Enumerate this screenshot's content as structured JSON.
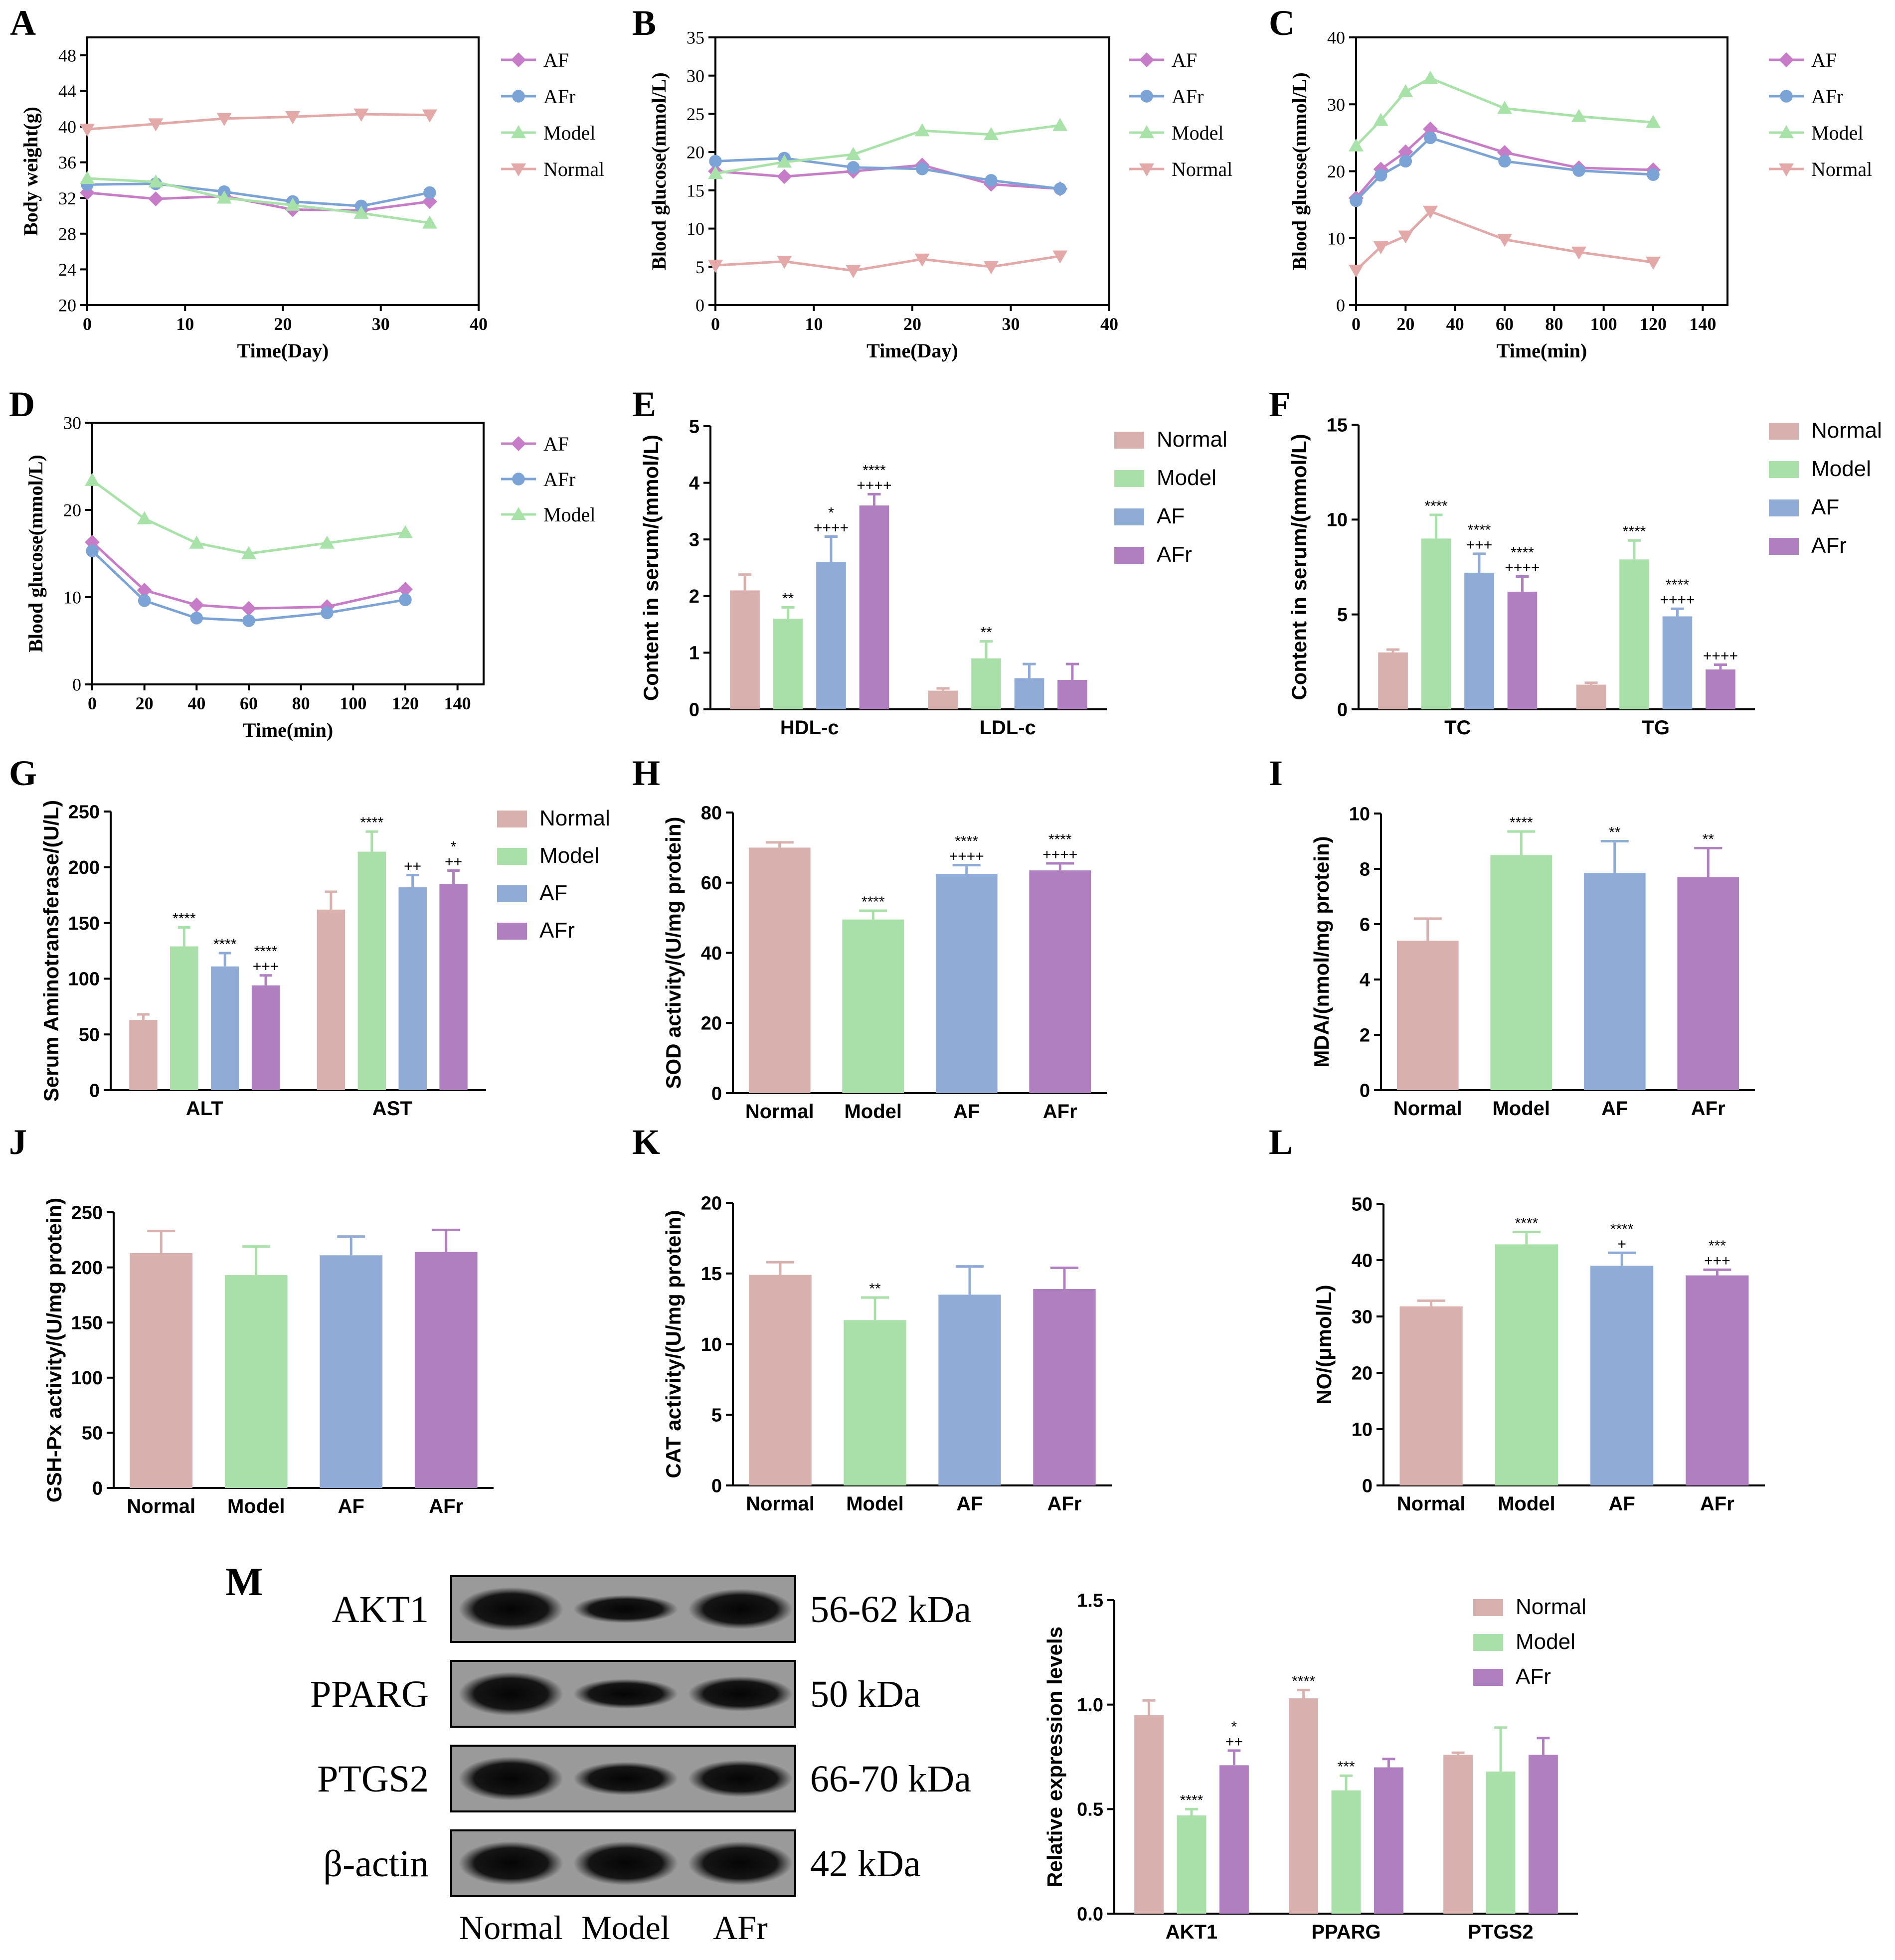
{
  "figure": {
    "background": "#ffffff"
  },
  "colors": {
    "AF": "#c77cc7",
    "AFr": "#7ba3d6",
    "Model": "#a8e2a8",
    "Normal": "#e3a8a8",
    "bar_Normal": "#d8b0ae",
    "bar_Model": "#a9dfa9",
    "bar_AF": "#8fabd6",
    "bar_AFr": "#b07fc0",
    "axis": "#000000"
  },
  "chart_data": [
    {
      "id": "A",
      "panel_label": "A",
      "type": "line",
      "xlabel": "Time(Day)",
      "ylabel": "Body weight(g)",
      "xlim": [
        0,
        40
      ],
      "ylim": [
        20,
        50
      ],
      "xticks": [
        0,
        10,
        20,
        30,
        40
      ],
      "yticks": [
        20,
        24,
        28,
        32,
        36,
        40,
        44,
        48
      ],
      "legend": [
        "AF",
        "AFr",
        "Model",
        "Normal"
      ],
      "legend_position": "right",
      "series": [
        {
          "name": "AF",
          "x": [
            0,
            7,
            14,
            21,
            28,
            35
          ],
          "y": [
            32.6,
            31.9,
            32.2,
            30.7,
            30.6,
            31.6
          ]
        },
        {
          "name": "AFr",
          "x": [
            0,
            7,
            14,
            21,
            28,
            35
          ],
          "y": [
            33.5,
            33.6,
            32.7,
            31.6,
            31.1,
            32.6
          ]
        },
        {
          "name": "Model",
          "x": [
            0,
            7,
            14,
            21,
            28,
            35
          ],
          "y": [
            34.2,
            33.8,
            32.0,
            31.2,
            30.3,
            29.2
          ]
        },
        {
          "name": "Normal",
          "x": [
            0,
            7,
            14,
            21,
            28,
            35
          ],
          "y": [
            39.7,
            40.3,
            40.9,
            41.1,
            41.4,
            41.3
          ]
        }
      ]
    },
    {
      "id": "B",
      "panel_label": "B",
      "type": "line",
      "xlabel": "Time(Day)",
      "ylabel": "Blood glucose(mmol/L)",
      "xlim": [
        0,
        40
      ],
      "ylim": [
        0,
        35
      ],
      "xticks": [
        0,
        10,
        20,
        30,
        40
      ],
      "yticks": [
        0,
        5,
        10,
        15,
        20,
        25,
        30,
        35
      ],
      "legend": [
        "AF",
        "AFr",
        "Model",
        "Normal"
      ],
      "legend_position": "right",
      "series": [
        {
          "name": "AF",
          "x": [
            0,
            7,
            14,
            21,
            28,
            35
          ],
          "y": [
            17.5,
            16.8,
            17.5,
            18.3,
            15.8,
            15.2
          ]
        },
        {
          "name": "AFr",
          "x": [
            0,
            7,
            14,
            21,
            28,
            35
          ],
          "y": [
            18.8,
            19.2,
            18.0,
            17.8,
            16.3,
            15.2
          ]
        },
        {
          "name": "Model",
          "x": [
            0,
            7,
            14,
            21,
            28,
            35
          ],
          "y": [
            17.2,
            18.7,
            19.7,
            22.8,
            22.3,
            23.5
          ]
        },
        {
          "name": "Normal",
          "x": [
            0,
            7,
            14,
            21,
            28,
            35
          ],
          "y": [
            5.2,
            5.7,
            4.5,
            6.0,
            5.0,
            6.4
          ]
        }
      ]
    },
    {
      "id": "C",
      "panel_label": "C",
      "type": "line",
      "xlabel": "Time(min)",
      "ylabel": "Blood glucose(mmol/L)",
      "xlim": [
        0,
        150
      ],
      "ylim": [
        0,
        40
      ],
      "xticks": [
        0,
        20,
        40,
        60,
        80,
        100,
        120,
        140
      ],
      "yticks": [
        0,
        10,
        20,
        30,
        40
      ],
      "legend": [
        "AF",
        "AFr",
        "Model",
        "Normal"
      ],
      "legend_position": "right",
      "series": [
        {
          "name": "AF",
          "x": [
            0,
            10,
            20,
            30,
            60,
            90,
            120
          ],
          "y": [
            16.0,
            20.3,
            22.9,
            26.3,
            22.8,
            20.5,
            20.2
          ]
        },
        {
          "name": "AFr",
          "x": [
            0,
            10,
            20,
            30,
            60,
            90,
            120
          ],
          "y": [
            15.6,
            19.4,
            21.5,
            25.0,
            21.5,
            20.1,
            19.5
          ]
        },
        {
          "name": "Model",
          "x": [
            0,
            10,
            20,
            30,
            60,
            90,
            120
          ],
          "y": [
            23.8,
            27.6,
            31.9,
            33.9,
            29.4,
            28.2,
            27.3
          ]
        },
        {
          "name": "Normal",
          "x": [
            0,
            10,
            20,
            30,
            60,
            90,
            120
          ],
          "y": [
            5.2,
            8.7,
            10.3,
            14.0,
            9.8,
            7.9,
            6.4
          ]
        }
      ]
    },
    {
      "id": "D",
      "panel_label": "D",
      "type": "line",
      "xlabel": "Time(min)",
      "ylabel": "Blood glucose(mmol/L)",
      "xlim": [
        0,
        150
      ],
      "ylim": [
        0,
        30
      ],
      "xticks": [
        0,
        20,
        40,
        60,
        80,
        100,
        120,
        140
      ],
      "yticks": [
        0,
        10,
        20,
        30
      ],
      "legend": [
        "AF",
        "AFr",
        "Model"
      ],
      "legend_position": "right",
      "series": [
        {
          "name": "AF",
          "x": [
            0,
            20,
            40,
            60,
            90,
            120
          ],
          "y": [
            16.3,
            10.8,
            9.1,
            8.7,
            8.9,
            10.9
          ]
        },
        {
          "name": "AFr",
          "x": [
            0,
            20,
            40,
            60,
            90,
            120
          ],
          "y": [
            15.3,
            9.6,
            7.6,
            7.3,
            8.2,
            9.7
          ]
        },
        {
          "name": "Model",
          "x": [
            0,
            20,
            40,
            60,
            90,
            120
          ],
          "y": [
            23.4,
            19.0,
            16.2,
            15.0,
            16.2,
            17.4
          ]
        }
      ]
    },
    {
      "id": "E",
      "panel_label": "E",
      "type": "bar",
      "ylabel": "Content in serum/(mmol/L)",
      "ylim": [
        0,
        5
      ],
      "yticks": [
        0,
        1,
        2,
        3,
        4,
        5
      ],
      "categories": [
        "HDL-c",
        "LDL-c"
      ],
      "legend": [
        "Normal",
        "Model",
        "AF",
        "AFr"
      ],
      "legend_position": "right",
      "series": [
        {
          "name": "Normal",
          "values": [
            2.1,
            0.33
          ],
          "errors": [
            0.28,
            0.04
          ],
          "annotations": [
            "",
            ""
          ]
        },
        {
          "name": "Model",
          "values": [
            1.6,
            0.9
          ],
          "errors": [
            0.2,
            0.3
          ],
          "annotations": [
            "**",
            "**"
          ]
        },
        {
          "name": "AF",
          "values": [
            2.6,
            0.55
          ],
          "errors": [
            0.45,
            0.25
          ],
          "annotations": [
            "*\n++++",
            ""
          ]
        },
        {
          "name": "AFr",
          "values": [
            3.6,
            0.52
          ],
          "errors": [
            0.2,
            0.28
          ],
          "annotations": [
            "****\n++++",
            ""
          ]
        }
      ]
    },
    {
      "id": "F",
      "panel_label": "F",
      "type": "bar",
      "ylabel": "Content in serum/(mmol/L)",
      "ylim": [
        0,
        15
      ],
      "yticks": [
        0,
        5,
        10,
        15
      ],
      "categories": [
        "TC",
        "TG"
      ],
      "legend": [
        "Normal",
        "Model",
        "AF",
        "AFr"
      ],
      "legend_position": "right",
      "series": [
        {
          "name": "Normal",
          "values": [
            3.0,
            1.3
          ],
          "errors": [
            0.15,
            0.1
          ],
          "annotations": [
            "",
            ""
          ]
        },
        {
          "name": "Model",
          "values": [
            9.0,
            7.9
          ],
          "errors": [
            1.25,
            1.0
          ],
          "annotations": [
            "****",
            "****"
          ]
        },
        {
          "name": "AF",
          "values": [
            7.2,
            4.9
          ],
          "errors": [
            1.0,
            0.4
          ],
          "annotations": [
            "****\n+++",
            "****\n++++"
          ]
        },
        {
          "name": "AFr",
          "values": [
            6.2,
            2.1
          ],
          "errors": [
            0.8,
            0.25
          ],
          "annotations": [
            "****\n++++",
            "++++"
          ]
        }
      ]
    },
    {
      "id": "G",
      "panel_label": "G",
      "type": "bar",
      "ylabel": "Serum Aminotransferase/(U/L)",
      "ylim": [
        0,
        250
      ],
      "yticks": [
        0,
        50,
        100,
        150,
        200,
        250
      ],
      "categories": [
        "ALT",
        "AST"
      ],
      "legend": [
        "Normal",
        "Model",
        "AF",
        "AFr"
      ],
      "legend_position": "right",
      "series": [
        {
          "name": "Normal",
          "values": [
            63,
            162
          ],
          "errors": [
            5,
            16
          ],
          "annotations": [
            "",
            ""
          ]
        },
        {
          "name": "Model",
          "values": [
            129,
            214
          ],
          "errors": [
            17,
            18
          ],
          "annotations": [
            "****",
            "****"
          ]
        },
        {
          "name": "AF",
          "values": [
            111,
            182
          ],
          "errors": [
            12,
            11
          ],
          "annotations": [
            "****",
            "++"
          ]
        },
        {
          "name": "AFr",
          "values": [
            94,
            185
          ],
          "errors": [
            9,
            12
          ],
          "annotations": [
            "****\n+++",
            "*\n++"
          ]
        }
      ]
    },
    {
      "id": "H",
      "panel_label": "H",
      "type": "bar",
      "ylabel": "SOD activity/(U/mg protein)",
      "ylim": [
        0,
        80
      ],
      "yticks": [
        0,
        20,
        40,
        60,
        80
      ],
      "categories": [
        "Normal",
        "Model",
        "AF",
        "AFr"
      ],
      "values": [
        70.0,
        49.5,
        62.5,
        63.5
      ],
      "errors": [
        1.5,
        2.5,
        2.5,
        2.0
      ],
      "annotations": [
        "",
        "****",
        "****\n++++",
        "****\n++++"
      ]
    },
    {
      "id": "I",
      "panel_label": "I",
      "type": "bar",
      "ylabel": "MDA/(nmol/mg protein)",
      "ylim": [
        0,
        10
      ],
      "yticks": [
        0,
        2,
        4,
        6,
        8,
        10
      ],
      "categories": [
        "Normal",
        "Model",
        "AF",
        "AFr"
      ],
      "values": [
        5.4,
        8.5,
        7.85,
        7.7
      ],
      "errors": [
        0.8,
        0.85,
        1.15,
        1.05
      ],
      "annotations": [
        "",
        "****",
        "**",
        "**"
      ]
    },
    {
      "id": "J",
      "panel_label": "J",
      "type": "bar",
      "ylabel": "GSH-Px activity/(U/mg protein)",
      "ylim": [
        0,
        250
      ],
      "yticks": [
        0,
        50,
        100,
        150,
        200,
        250
      ],
      "categories": [
        "Normal",
        "Model",
        "AF",
        "AFr"
      ],
      "values": [
        213,
        193,
        211,
        214
      ],
      "errors": [
        20,
        26,
        17,
        20
      ],
      "annotations": [
        "",
        "",
        "",
        ""
      ]
    },
    {
      "id": "K",
      "panel_label": "K",
      "type": "bar",
      "ylabel": "CAT activity/(U/mg protein)",
      "ylim": [
        0,
        20
      ],
      "yticks": [
        0,
        5,
        10,
        15,
        20
      ],
      "categories": [
        "Normal",
        "Model",
        "AF",
        "AFr"
      ],
      "values": [
        14.9,
        11.7,
        13.5,
        13.9
      ],
      "errors": [
        0.9,
        1.6,
        2.0,
        1.5
      ],
      "annotations": [
        "",
        "**",
        "",
        ""
      ]
    },
    {
      "id": "L",
      "panel_label": "L",
      "type": "bar",
      "ylabel": "NO/(μmol/L)",
      "ylim": [
        0,
        50
      ],
      "yticks": [
        0,
        10,
        20,
        30,
        40,
        50
      ],
      "categories": [
        "Normal",
        "Model",
        "AF",
        "AFr"
      ],
      "values": [
        31.8,
        42.8,
        39.0,
        37.3
      ],
      "errors": [
        1.0,
        2.2,
        2.3,
        1.0
      ],
      "annotations": [
        "",
        "****",
        "****\n+",
        "***\n+++"
      ]
    },
    {
      "id": "M",
      "panel_label": "",
      "type": "bar",
      "ylabel": "Relative expression levels",
      "ylim": [
        0,
        1.5
      ],
      "yticks": [
        0.0,
        0.5,
        1.0,
        1.5
      ],
      "categories": [
        "AKT1",
        "PPARG",
        "PTGS2"
      ],
      "legend": [
        "Normal",
        "Model",
        "AFr"
      ],
      "legend_position": "top-right",
      "series": [
        {
          "name": "Normal",
          "values": [
            0.95,
            1.03,
            0.76
          ],
          "errors": [
            0.07,
            0.04,
            0.01
          ],
          "annotations": [
            "",
            "****",
            ""
          ]
        },
        {
          "name": "Model",
          "values": [
            0.47,
            0.59,
            0.68
          ],
          "errors": [
            0.03,
            0.07,
            0.21
          ],
          "annotations": [
            "****",
            "***",
            ""
          ]
        },
        {
          "name": "AFr",
          "values": [
            0.71,
            0.7,
            0.76
          ],
          "errors": [
            0.07,
            0.04,
            0.08
          ],
          "annotations": [
            "*\n++",
            "",
            ""
          ]
        }
      ]
    }
  ],
  "blot": {
    "panel_label": "M",
    "rows": [
      {
        "protein": "AKT1",
        "size": "56-62 kDa",
        "intensity": [
          1.0,
          0.55,
          0.9
        ]
      },
      {
        "protein": "PPARG",
        "size": "50 kDa",
        "intensity": [
          1.0,
          0.6,
          0.75
        ]
      },
      {
        "protein": "PTGS2",
        "size": "66-70 kDa",
        "intensity": [
          1.0,
          0.7,
          0.8
        ]
      },
      {
        "protein": "β-actin",
        "size": "42 kDa",
        "intensity": [
          1.0,
          1.0,
          1.0
        ]
      }
    ],
    "lanes": [
      "Normal",
      "Model",
      "AFr"
    ]
  }
}
